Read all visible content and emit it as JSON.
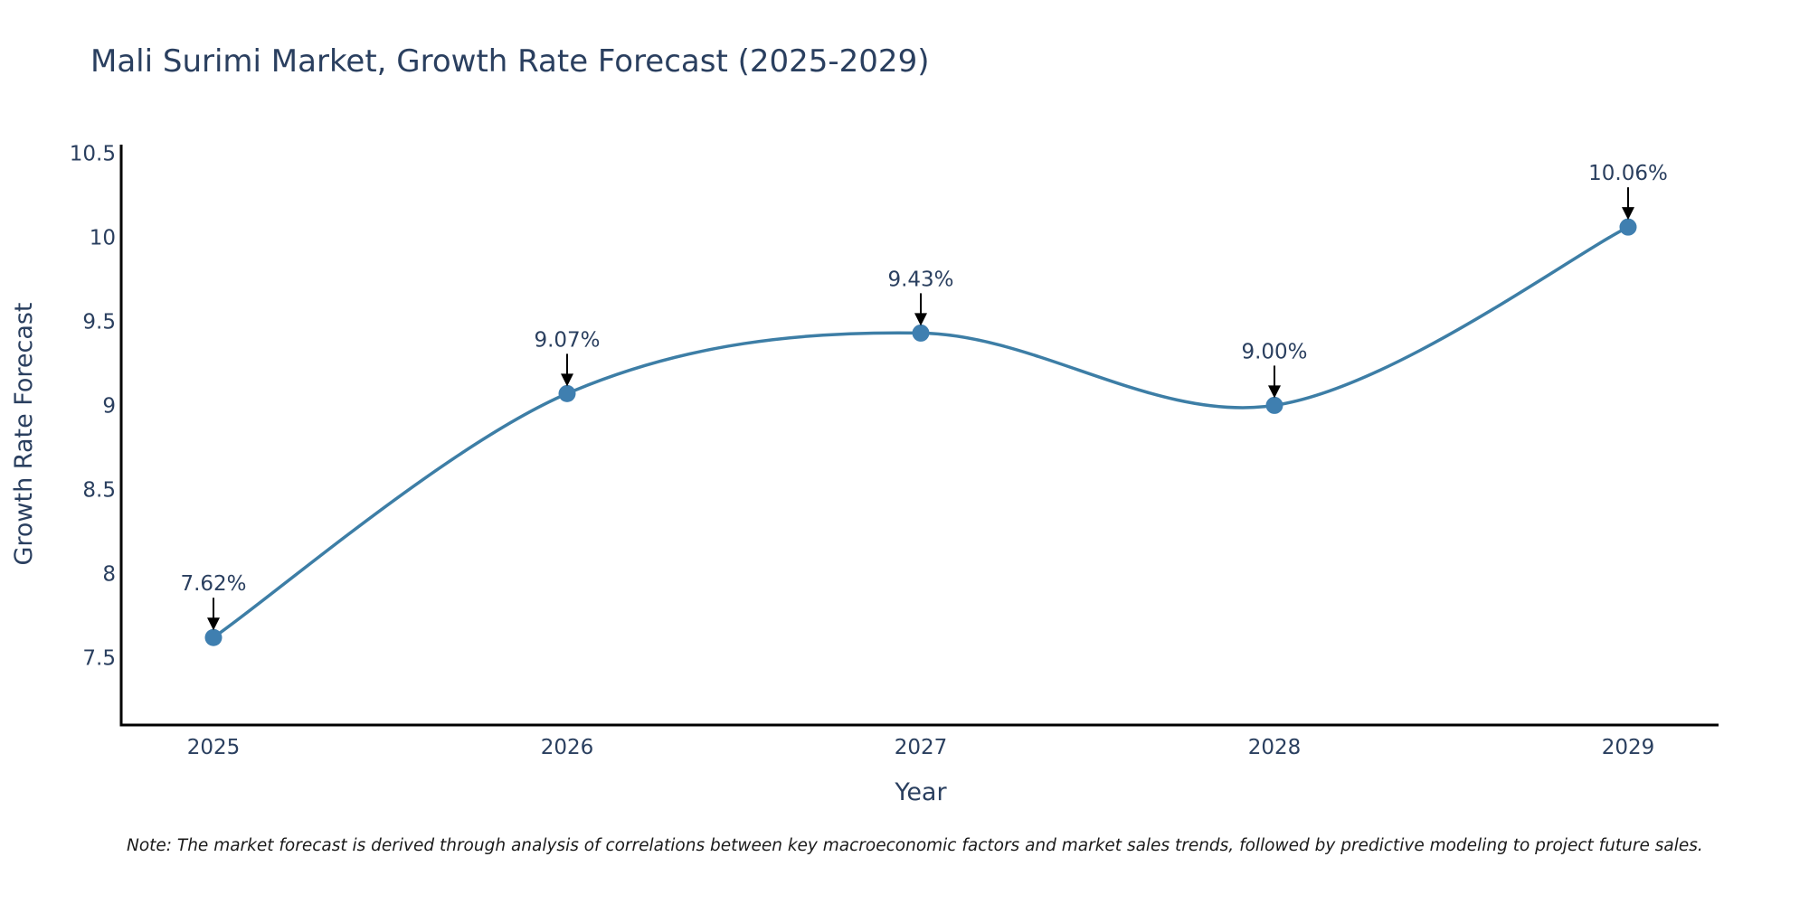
{
  "colors": {
    "line": "#3d7ea6",
    "marker": "#3f7fb0",
    "axis": "#000000",
    "arrow": "#000000",
    "text": "#2a3f5f"
  },
  "chart_data": {
    "type": "line",
    "title": "Mali Surimi Market, Growth Rate Forecast (2025-2029)",
    "xlabel": "Year",
    "ylabel": "Growth Rate Forecast",
    "categories": [
      "2025",
      "2026",
      "2027",
      "2028",
      "2029"
    ],
    "values": [
      7.62,
      9.07,
      9.43,
      9.0,
      10.06
    ],
    "data_labels": [
      "7.62%",
      "9.07%",
      "9.43%",
      "9.00%",
      "10.06%"
    ],
    "yticks": [
      "7.5",
      "8",
      "8.5",
      "9",
      "9.5",
      "10",
      "10.5"
    ],
    "ylim": [
      7.1,
      10.55
    ],
    "grid": false,
    "line_shape": "spline",
    "note": "Note: The market forecast is derived through analysis of correlations between key macroeconomic factors and market sales trends, followed by predictive modeling to project future sales."
  }
}
